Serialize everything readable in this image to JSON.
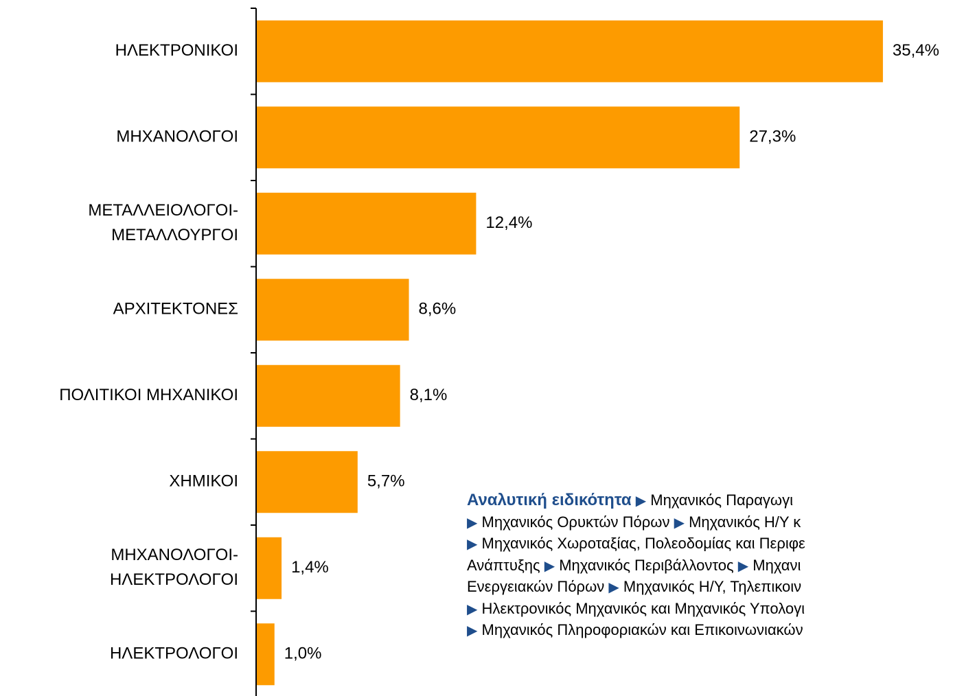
{
  "chart_data": {
    "type": "bar",
    "orientation": "horizontal",
    "categories": [
      [
        "ΗΛΕΚΤΡΟΝΙΚΟΙ"
      ],
      [
        "ΜΗΧΑΝΟΛΟΓΟΙ"
      ],
      [
        "ΜΕΤΑΛΛΕΙΟΛΟΓΟΙ-",
        "ΜΕΤΑΛΛΟΥΡΓΟΙ"
      ],
      [
        "ΑΡΧΙΤΕΚΤΟΝΕΣ"
      ],
      [
        "ΠΟΛΙΤΙΚΟΙ ΜΗΧΑΝΙΚΟΙ"
      ],
      [
        "ΧΗΜΙΚΟΙ"
      ],
      [
        "ΜΗΧΑΝΟΛΟΓΟΙ-",
        "ΗΛΕΚΤΡΟΛΟΓΟΙ"
      ],
      [
        "ΗΛΕΚΤΡΟΛΟΓΟΙ"
      ]
    ],
    "values": [
      35.4,
      27.3,
      12.4,
      8.6,
      8.1,
      5.7,
      1.4,
      1.0
    ],
    "value_labels": [
      "35,4%",
      "27,3%",
      "12,4%",
      "8,6%",
      "8,1%",
      "5,7%",
      "1,4%",
      "1,0%"
    ],
    "color": "#fd9b00"
  },
  "specialties": {
    "heading": "Αναλυτική ειδικότητα",
    "items": [
      "Μηχανικός Παραγωγι",
      "Μηχανικός Ορυκτών Πόρων",
      "Μηχανικός Η/Υ κ",
      "Μηχανικός Χωροταξίας, Πολεοδομίας και Περιφε",
      "Ανάπτυξης",
      "Μηχανικός Περιβάλλοντος",
      "Μηχανι",
      "Ενεργειακών Πόρων",
      "Μηχανικός Η/Υ, Τηλεπικοιν",
      "Ηλεκτρονικός Μηχανικός και Μηχανικός Υπολογι",
      "Μηχανικός Πληροφοριακών και Επικοινωνιακών"
    ]
  }
}
